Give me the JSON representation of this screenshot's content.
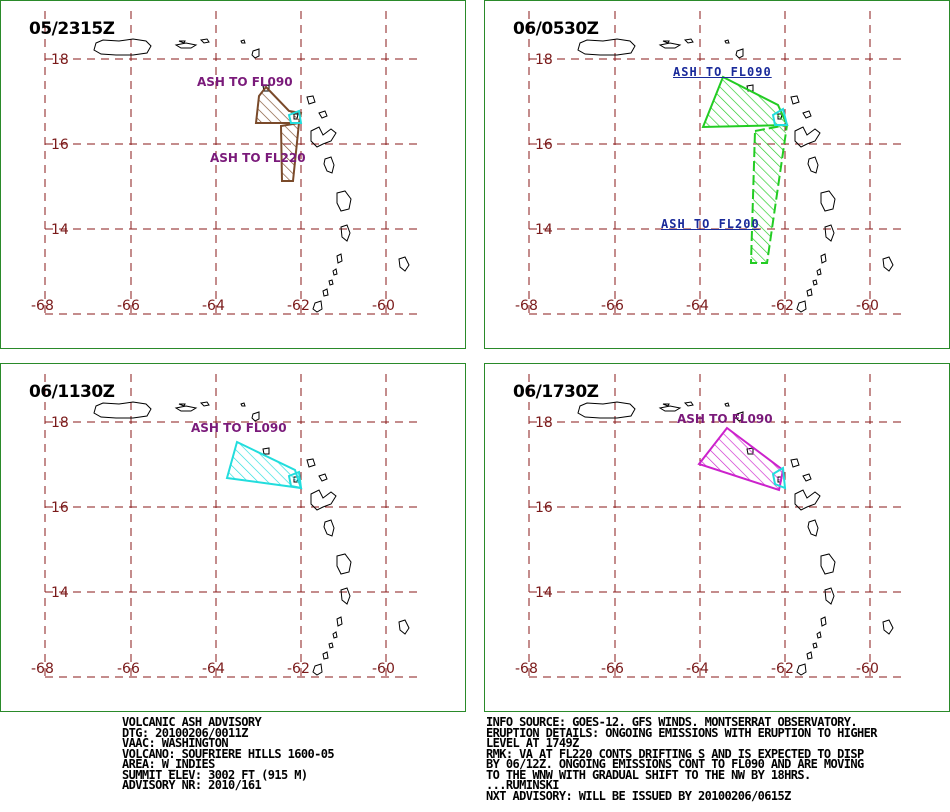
{
  "panels": [
    {
      "title": "05/2315Z",
      "labels": [
        "ASH TO FL090",
        "ASH TO FL220"
      ],
      "colors": [
        "#7a4a2a",
        "#7a4a2a"
      ]
    },
    {
      "title": "06/0530Z",
      "labels": [
        "ASH TO FL090",
        "ASH TO FL200"
      ],
      "colors": [
        "#22cc22",
        "#22cc22"
      ]
    },
    {
      "title": "06/1130Z",
      "labels": [
        "ASH TO FL090"
      ],
      "colors": [
        "#22dddd"
      ]
    },
    {
      "title": "06/1730Z",
      "labels": [
        "ASH TO FL090"
      ],
      "colors": [
        "#cc22cc"
      ]
    }
  ],
  "axes": {
    "lat_labels": [
      "18",
      "16",
      "14"
    ],
    "lon_labels": [
      "-68",
      "-66",
      "-64",
      "-62",
      "-60"
    ]
  },
  "advisory_left": [
    "VOLCANIC ASH ADVISORY",
    "DTG: 20100206/0011Z",
    "VAAC: WASHINGTON",
    "VOLCANO: SOUFRIERE HILLS 1600-05",
    "AREA: W_INDIES",
    "SUMMIT ELEV: 3002 FT (915 M)",
    "ADVISORY NR: 2010/161"
  ],
  "advisory_right": [
    "INFO SOURCE: GOES-12. GFS WINDS. MONTSERRAT OBSERVATORY.",
    "ERUPTION DETAILS: ONGOING EMISSIONS WITH ERUPTION TO HIGHER",
    "LEVEL AT 1749Z",
    "RMK: VA AT FL220 CONTS DRIFTING S AND IS EXPECTED TO DISP",
    "BY 06/12Z. ONGOING EMISSIONS CONT TO FL090 AND ARE MOVING",
    "TO THE WNW WITH GRADUAL SHIFT TO THE NW BY 18HRS.",
    "...RUMINSKI",
    "NXT ADVISORY: WILL BE ISSUED BY 20100206/0615Z"
  ],
  "colors": {
    "grid": "#8a1a1a",
    "frame": "#2a8a2a",
    "volcano": "#22dddd"
  }
}
